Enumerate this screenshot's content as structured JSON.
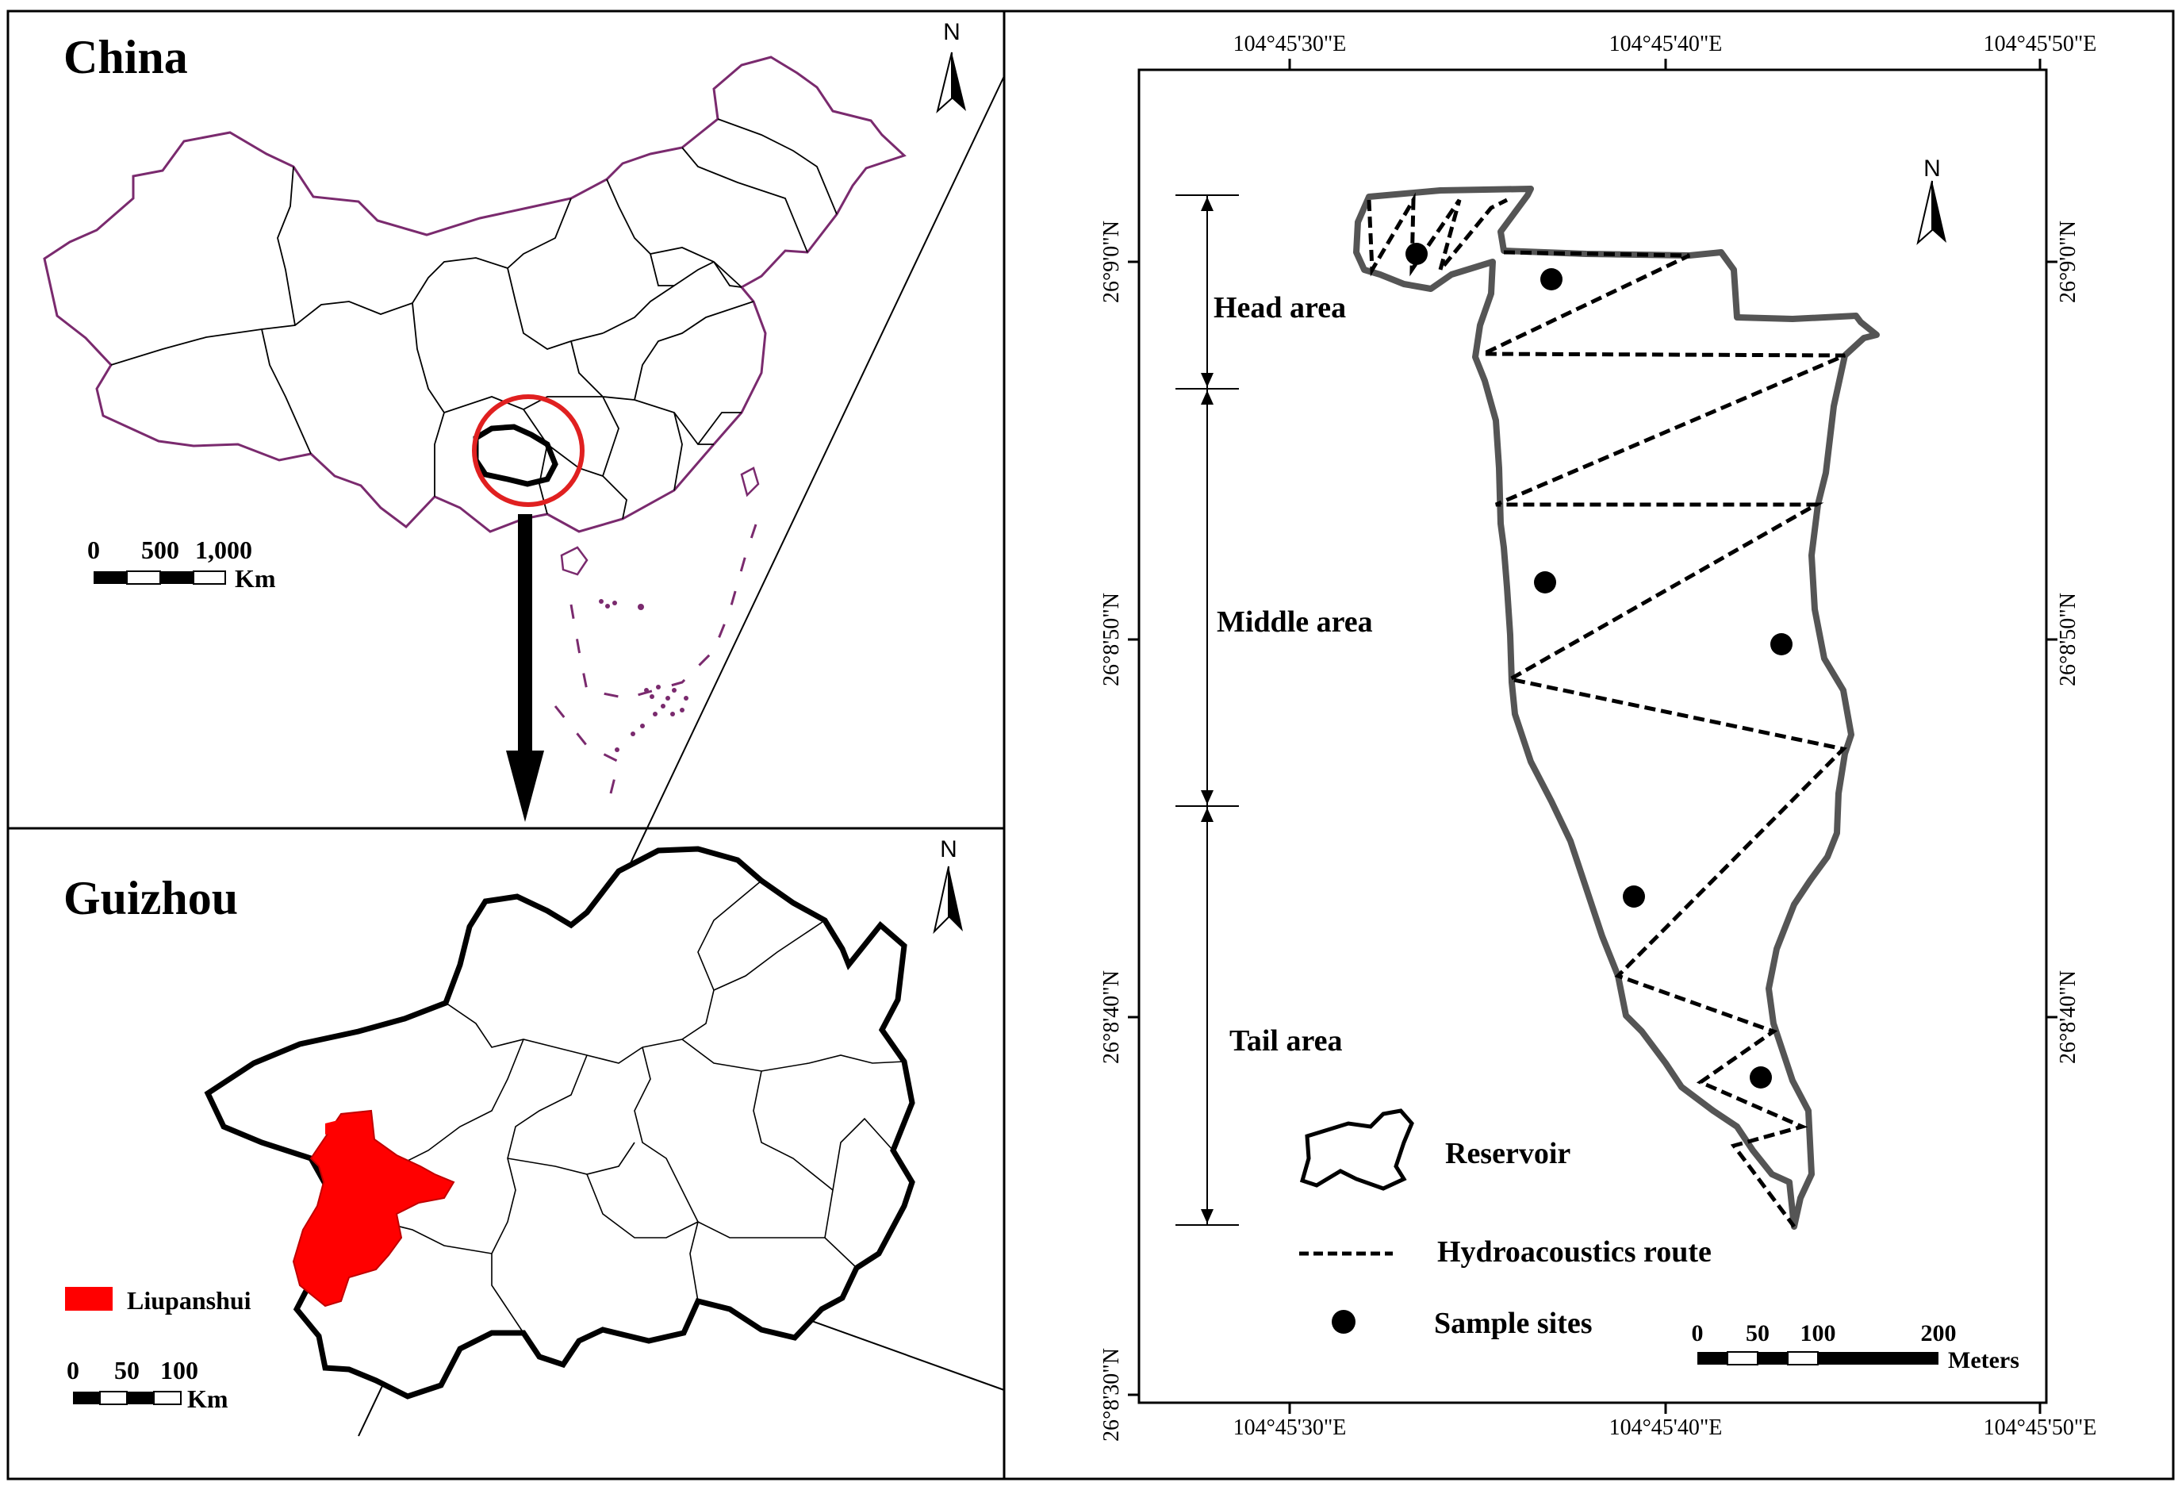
{
  "china_panel": {
    "title": "China",
    "north_label": "N",
    "scale_ticks": [
      "0",
      "500",
      "1,000"
    ],
    "scale_unit": "Km"
  },
  "guizhou_panel": {
    "title": "Guizhou",
    "north_label": "N",
    "legend_label": "Liupanshui",
    "scale_ticks": [
      "0",
      "50",
      "100"
    ],
    "scale_unit": "Km"
  },
  "reservoir_panel": {
    "north_label": "N",
    "lon_labels": [
      "104°45'30\"E",
      "104°45'40\"E",
      "104°45'50\"E"
    ],
    "lat_labels": [
      "26°9'0\"N",
      "26°8'50\"N",
      "26°8'40\"N",
      "26°8'30\"N"
    ],
    "areas": [
      "Head area",
      "Middle area",
      "Tail area"
    ],
    "legend": {
      "reservoir": "Reservoir",
      "route": "Hydroacoustics route",
      "sites": "Sample sites"
    },
    "scale_ticks": [
      "0",
      "50",
      "100",
      "200"
    ],
    "scale_unit": "Meters"
  },
  "colors": {
    "liupanshui": "#ff0000",
    "china_coast": "#7a2a6e",
    "highlight_circle": "#e02020"
  }
}
